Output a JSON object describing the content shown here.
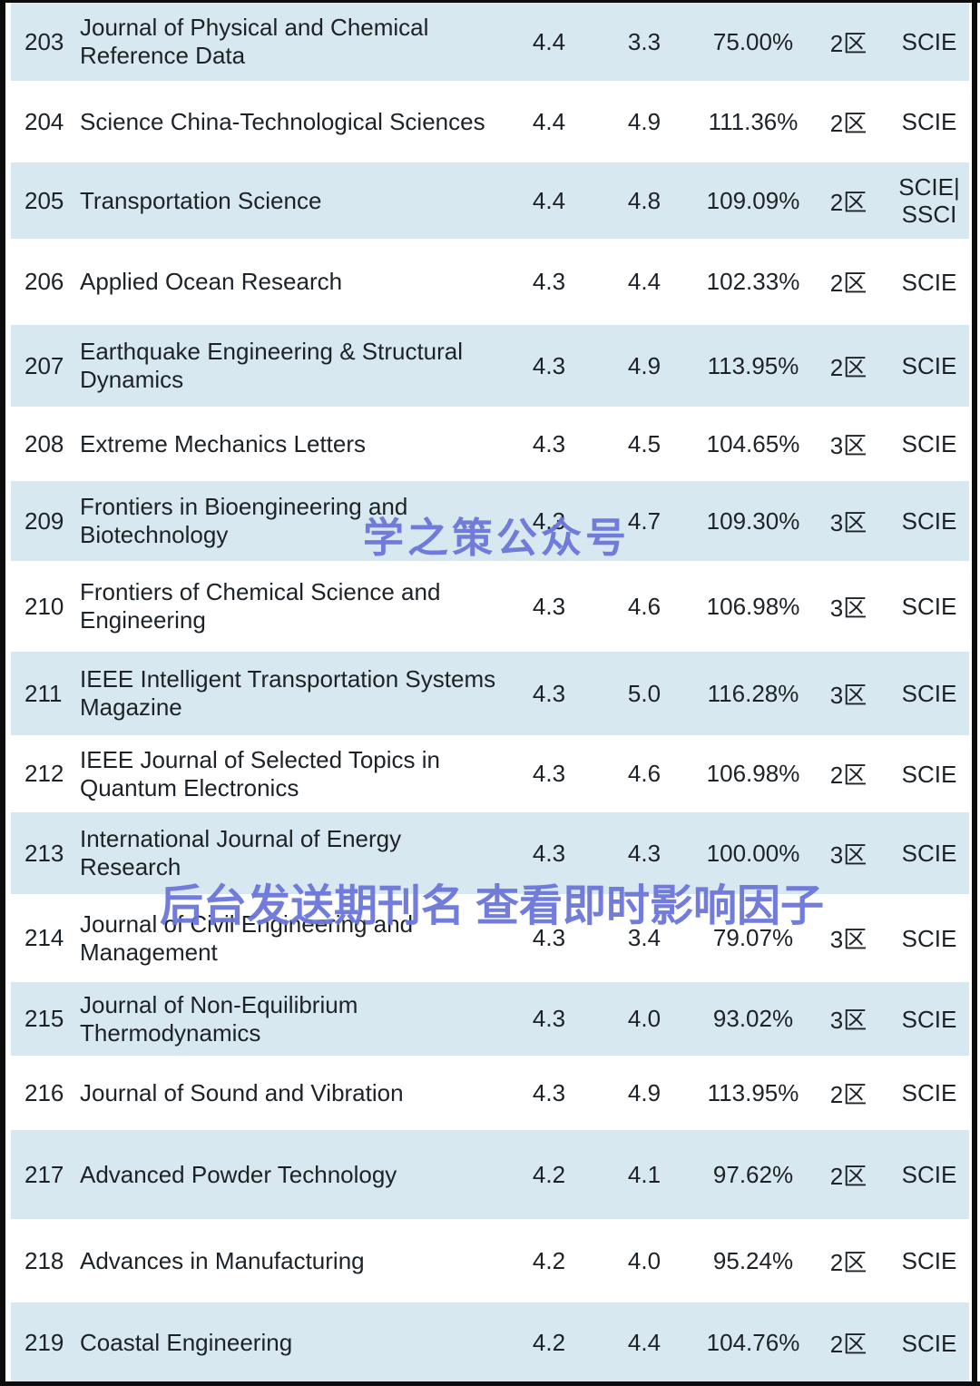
{
  "watermarks": {
    "center": "学之策公众号",
    "lower": "后台发送期刊名 查看即时影响因子",
    "color": "#6b76d9"
  },
  "colors": {
    "row_alt_blue": "#d8e8f0",
    "row_white": "#ffffff",
    "text": "#1d2227",
    "frame_black": "#0c0c0c"
  },
  "table": {
    "rows": [
      {
        "rank": "203",
        "name": "Journal of Physical and Chemical\nReference Data",
        "v1": "4.4",
        "v2": "3.3",
        "pct": "75.00%",
        "zone": "2区",
        "idx": "SCIE"
      },
      {
        "rank": "204",
        "name": "Science China-Technological Sciences",
        "v1": "4.4",
        "v2": "4.9",
        "pct": "111.36%",
        "zone": "2区",
        "idx": "SCIE"
      },
      {
        "rank": "205",
        "name": "Transportation Science",
        "v1": "4.4",
        "v2": "4.8",
        "pct": "109.09%",
        "zone": "2区",
        "idx": "SCIE|\nSSCI"
      },
      {
        "rank": "206",
        "name": "Applied Ocean Research",
        "v1": "4.3",
        "v2": "4.4",
        "pct": "102.33%",
        "zone": "2区",
        "idx": "SCIE"
      },
      {
        "rank": "207",
        "name": "Earthquake Engineering & Structural\nDynamics",
        "v1": "4.3",
        "v2": "4.9",
        "pct": "113.95%",
        "zone": "2区",
        "idx": "SCIE"
      },
      {
        "rank": "208",
        "name": "Extreme Mechanics Letters",
        "v1": "4.3",
        "v2": "4.5",
        "pct": "104.65%",
        "zone": "3区",
        "idx": "SCIE"
      },
      {
        "rank": "209",
        "name": "Frontiers in Bioengineering and\nBiotechnology",
        "v1": "4.3",
        "v2": "4.7",
        "pct": "109.30%",
        "zone": "3区",
        "idx": "SCIE"
      },
      {
        "rank": "210",
        "name": "Frontiers of Chemical Science and\nEngineering",
        "v1": "4.3",
        "v2": "4.6",
        "pct": "106.98%",
        "zone": "3区",
        "idx": "SCIE"
      },
      {
        "rank": "211",
        "name": "IEEE Intelligent Transportation Systems\nMagazine",
        "v1": "4.3",
        "v2": "5.0",
        "pct": "116.28%",
        "zone": "3区",
        "idx": "SCIE"
      },
      {
        "rank": "212",
        "name": "IEEE Journal of Selected Topics in\nQuantum Electronics",
        "v1": "4.3",
        "v2": "4.6",
        "pct": "106.98%",
        "zone": "2区",
        "idx": "SCIE"
      },
      {
        "rank": "213",
        "name": "International Journal of Energy\nResearch",
        "v1": "4.3",
        "v2": "4.3",
        "pct": "100.00%",
        "zone": "3区",
        "idx": "SCIE"
      },
      {
        "rank": "214",
        "name": "Journal of Civil Engineering and\nManagement",
        "v1": "4.3",
        "v2": "3.4",
        "pct": "79.07%",
        "zone": "3区",
        "idx": "SCIE"
      },
      {
        "rank": "215",
        "name": "Journal of Non-Equilibrium\nThermodynamics",
        "v1": "4.3",
        "v2": "4.0",
        "pct": "93.02%",
        "zone": "3区",
        "idx": "SCIE"
      },
      {
        "rank": "216",
        "name": "Journal of Sound and Vibration",
        "v1": "4.3",
        "v2": "4.9",
        "pct": "113.95%",
        "zone": "2区",
        "idx": "SCIE"
      },
      {
        "rank": "217",
        "name": "Advanced Powder Technology",
        "v1": "4.2",
        "v2": "4.1",
        "pct": "97.62%",
        "zone": "2区",
        "idx": "SCIE"
      },
      {
        "rank": "218",
        "name": "Advances in Manufacturing",
        "v1": "4.2",
        "v2": "4.0",
        "pct": "95.24%",
        "zone": "2区",
        "idx": "SCIE"
      },
      {
        "rank": "219",
        "name": "Coastal Engineering",
        "v1": "4.2",
        "v2": "4.4",
        "pct": "104.76%",
        "zone": "2区",
        "idx": "SCIE"
      }
    ]
  }
}
